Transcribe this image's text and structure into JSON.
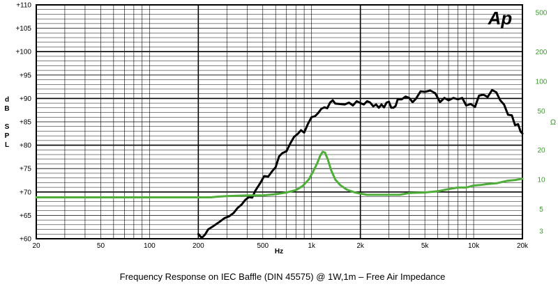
{
  "chart_data": {
    "type": "line",
    "title": "Frequency Response on IEC Baffle (DIN 45575)  @ 1W,1m – Free  Air Impedance",
    "logo": "Ap",
    "xlabel": "Hz",
    "ylabel_left": [
      "d",
      "B",
      "",
      "S",
      "P",
      "L"
    ],
    "ylabel_right": "Ω",
    "x_scale": "log",
    "xlim": [
      20,
      20000
    ],
    "ylim_left": [
      60,
      110
    ],
    "ylim_right_log": [
      2.5,
      600
    ],
    "grid": true,
    "x_ticks": [
      {
        "v": 20,
        "label": "20"
      },
      {
        "v": 50,
        "label": "50"
      },
      {
        "v": 100,
        "label": "100"
      },
      {
        "v": 200,
        "label": "200"
      },
      {
        "v": 500,
        "label": "500"
      },
      {
        "v": 1000,
        "label": "1k"
      },
      {
        "v": 2000,
        "label": "2k"
      },
      {
        "v": 5000,
        "label": "5k"
      },
      {
        "v": 10000,
        "label": "10k"
      },
      {
        "v": 20000,
        "label": "20k"
      }
    ],
    "y_ticks_left": [
      {
        "v": 110,
        "label": "+110"
      },
      {
        "v": 105,
        "label": "+105"
      },
      {
        "v": 100,
        "label": "+100"
      },
      {
        "v": 95,
        "label": "+95"
      },
      {
        "v": 90,
        "label": "+90"
      },
      {
        "v": 85,
        "label": "+85"
      },
      {
        "v": 80,
        "label": "+80"
      },
      {
        "v": 75,
        "label": "+75"
      },
      {
        "v": 70,
        "label": "+70"
      },
      {
        "v": 65,
        "label": "+65"
      },
      {
        "v": 60,
        "label": "+60"
      }
    ],
    "y_ticks_right": [
      {
        "v": 500,
        "label": "500"
      },
      {
        "v": 200,
        "label": "200"
      },
      {
        "v": 100,
        "label": "100"
      },
      {
        "v": 50,
        "label": "50"
      },
      {
        "v": 20,
        "label": "20"
      },
      {
        "v": 10,
        "label": "10"
      },
      {
        "v": 5,
        "label": "5"
      },
      {
        "v": 3,
        "label": "3"
      }
    ],
    "colors": {
      "spl": "#000000",
      "impedance": "#4fae3a",
      "grid": "#000000",
      "right_axis": "#3a9a2a"
    },
    "series": [
      {
        "axis": "left",
        "color": "#000000",
        "points": [
          [
            200,
            61.0
          ],
          [
            210,
            60.2
          ],
          [
            220,
            60.9
          ],
          [
            230,
            62.0
          ],
          [
            250,
            62.8
          ],
          [
            270,
            63.6
          ],
          [
            290,
            64.4
          ],
          [
            310,
            64.8
          ],
          [
            330,
            65.5
          ],
          [
            350,
            66.6
          ],
          [
            370,
            67.3
          ],
          [
            390,
            68.3
          ],
          [
            410,
            68.9
          ],
          [
            430,
            68.8
          ],
          [
            450,
            70.3
          ],
          [
            480,
            71.8
          ],
          [
            510,
            73.4
          ],
          [
            540,
            73.3
          ],
          [
            570,
            74.4
          ],
          [
            600,
            75.3
          ],
          [
            630,
            77.6
          ],
          [
            660,
            78.3
          ],
          [
            700,
            78.7
          ],
          [
            740,
            80.4
          ],
          [
            780,
            81.8
          ],
          [
            820,
            82.4
          ],
          [
            860,
            83.2
          ],
          [
            900,
            82.7
          ],
          [
            950,
            84.6
          ],
          [
            1000,
            86.0
          ],
          [
            1050,
            86.2
          ],
          [
            1100,
            86.9
          ],
          [
            1150,
            87.8
          ],
          [
            1200,
            88.1
          ],
          [
            1250,
            87.9
          ],
          [
            1300,
            89.1
          ],
          [
            1350,
            89.6
          ],
          [
            1400,
            88.9
          ],
          [
            1500,
            88.8
          ],
          [
            1600,
            88.7
          ],
          [
            1700,
            89.1
          ],
          [
            1800,
            88.5
          ],
          [
            1900,
            89.4
          ],
          [
            2000,
            89.0
          ],
          [
            2100,
            88.7
          ],
          [
            2200,
            89.4
          ],
          [
            2300,
            89.1
          ],
          [
            2400,
            88.3
          ],
          [
            2500,
            88.7
          ],
          [
            2600,
            88.0
          ],
          [
            2700,
            88.7
          ],
          [
            2800,
            88.1
          ],
          [
            2900,
            89.1
          ],
          [
            3000,
            89.3
          ],
          [
            3100,
            88.0
          ],
          [
            3200,
            88.0
          ],
          [
            3300,
            88.4
          ],
          [
            3400,
            89.8
          ],
          [
            3600,
            89.8
          ],
          [
            3800,
            90.4
          ],
          [
            4000,
            90.1
          ],
          [
            4200,
            89.2
          ],
          [
            4400,
            89.9
          ],
          [
            4700,
            91.5
          ],
          [
            5000,
            91.4
          ],
          [
            5400,
            91.7
          ],
          [
            5800,
            91.1
          ],
          [
            6200,
            89.2
          ],
          [
            6600,
            90.1
          ],
          [
            7000,
            89.6
          ],
          [
            7500,
            90.1
          ],
          [
            8000,
            89.8
          ],
          [
            8500,
            90.1
          ],
          [
            9000,
            88.5
          ],
          [
            9600,
            88.8
          ],
          [
            10200,
            88.2
          ],
          [
            10800,
            90.6
          ],
          [
            11500,
            90.8
          ],
          [
            12200,
            90.3
          ],
          [
            13000,
            91.8
          ],
          [
            13800,
            91.3
          ],
          [
            14600,
            89.6
          ],
          [
            15400,
            88.7
          ],
          [
            16300,
            86.5
          ],
          [
            17200,
            86.4
          ],
          [
            18000,
            84.3
          ],
          [
            18800,
            84.5
          ],
          [
            19500,
            82.9
          ],
          [
            20000,
            82.5
          ]
        ]
      },
      {
        "axis": "right",
        "color": "#4fae3a",
        "points": [
          [
            20,
            6.6
          ],
          [
            80,
            6.6
          ],
          [
            200,
            6.6
          ],
          [
            240,
            6.6
          ],
          [
            260,
            6.7
          ],
          [
            300,
            6.8
          ],
          [
            400,
            6.9
          ],
          [
            500,
            6.9
          ],
          [
            600,
            7.1
          ],
          [
            700,
            7.4
          ],
          [
            800,
            7.8
          ],
          [
            880,
            8.6
          ],
          [
            960,
            10.0
          ],
          [
            1020,
            12.0
          ],
          [
            1080,
            14.5
          ],
          [
            1130,
            17.5
          ],
          [
            1170,
            19.2
          ],
          [
            1210,
            18.8
          ],
          [
            1260,
            16.0
          ],
          [
            1320,
            12.5
          ],
          [
            1400,
            10.0
          ],
          [
            1500,
            8.8
          ],
          [
            1650,
            7.9
          ],
          [
            1850,
            7.4
          ],
          [
            2000,
            7.2
          ],
          [
            2200,
            7.0
          ],
          [
            2600,
            7.0
          ],
          [
            3000,
            7.0
          ],
          [
            3500,
            7.0
          ],
          [
            4000,
            7.3
          ],
          [
            5000,
            7.4
          ],
          [
            6000,
            7.6
          ],
          [
            7000,
            8.0
          ],
          [
            8000,
            8.3
          ],
          [
            9000,
            8.3
          ],
          [
            10000,
            8.7
          ],
          [
            11000,
            8.8
          ],
          [
            12000,
            9.0
          ],
          [
            14000,
            9.2
          ],
          [
            16000,
            9.7
          ],
          [
            18000,
            9.9
          ],
          [
            20000,
            10.2
          ]
        ]
      }
    ]
  }
}
